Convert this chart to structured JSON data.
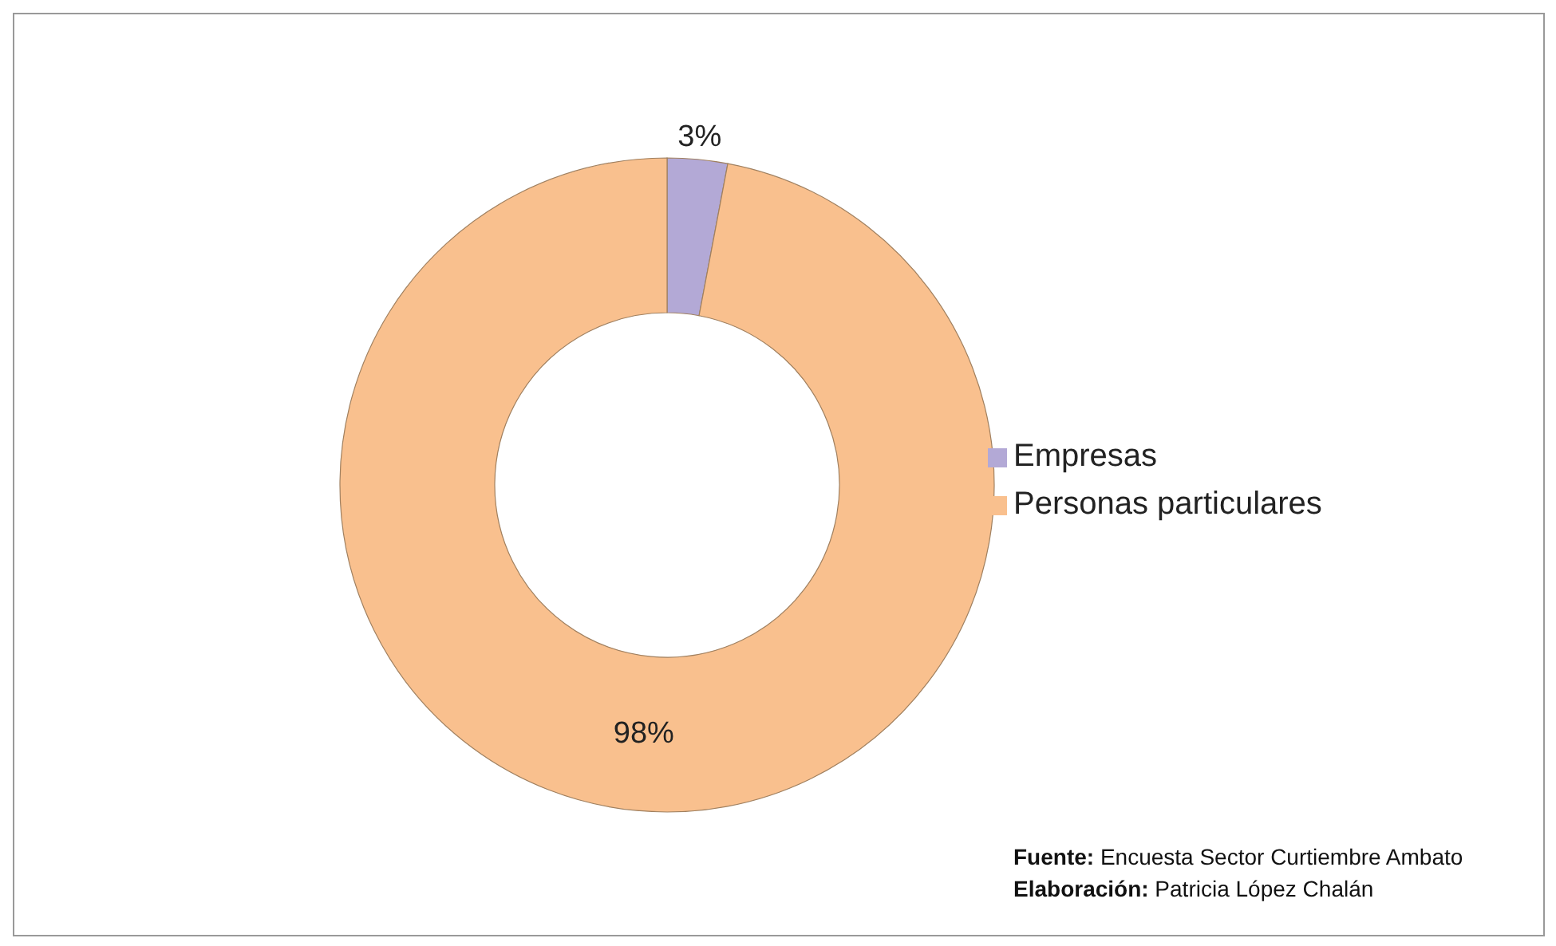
{
  "chart_data": {
    "type": "donut",
    "categories": [
      "Empresas",
      "Personas particulares"
    ],
    "values": [
      3,
      98
    ],
    "colors": [
      "#b3a9d6",
      "#f9c08e"
    ],
    "value_labels": [
      "3%",
      "98%"
    ],
    "legend": "right",
    "annotations": [
      "Fuente: Encuesta Sector Curtiembre Ambato",
      "Elaboración: Patricia López Chalán"
    ]
  }
}
